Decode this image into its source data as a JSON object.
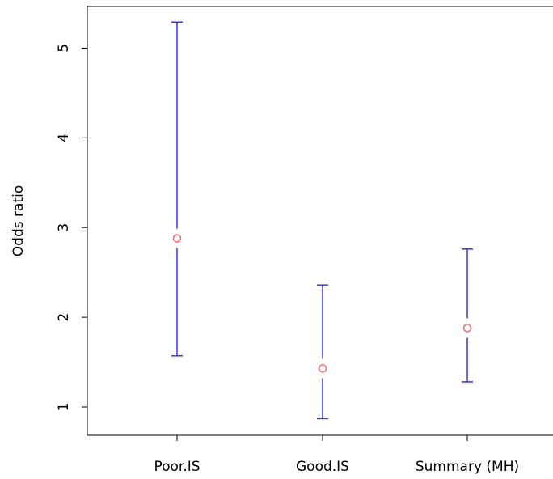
{
  "chart_data": {
    "type": "scatter",
    "title": "",
    "xlabel": "",
    "ylabel": "Odds ratio",
    "categories": [
      "Poor.IS",
      "Good.IS",
      "Summary (MH)"
    ],
    "y_ticks": [
      1,
      2,
      3,
      4,
      5
    ],
    "y_tick_labels": [
      "1",
      "2",
      "3",
      "4",
      "5"
    ],
    "ylim": [
      0.7,
      5.45
    ],
    "grid": false,
    "series": [
      {
        "estimates": [
          2.88,
          1.43,
          1.88
        ],
        "lower": [
          1.57,
          0.87,
          1.28
        ],
        "upper": [
          5.29,
          2.36,
          2.76
        ]
      }
    ],
    "colors": {
      "point": "#ff6666",
      "error_bar": "#3333ff",
      "axis": "#000000"
    }
  }
}
